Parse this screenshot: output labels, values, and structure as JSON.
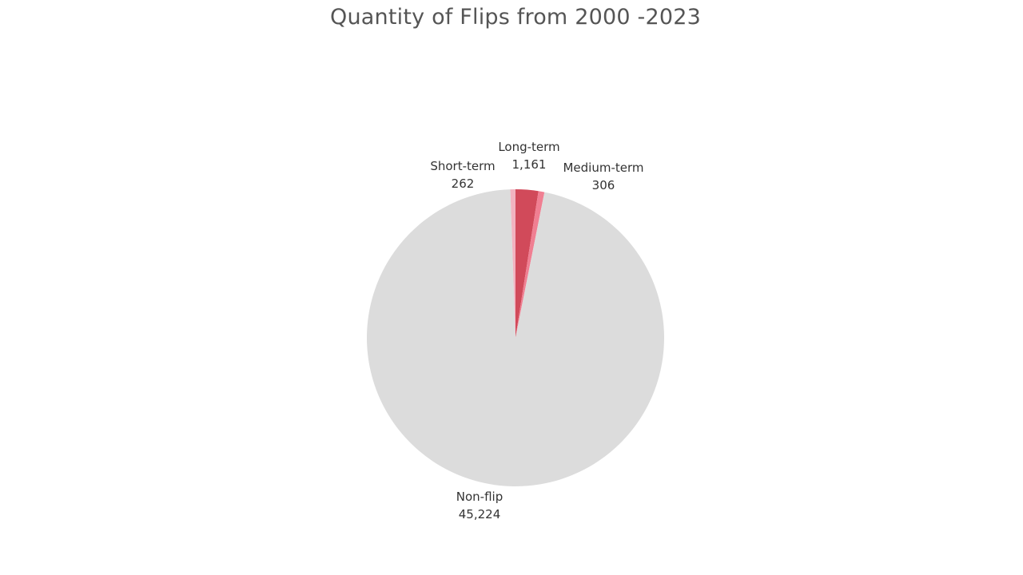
{
  "chart_data": {
    "type": "pie",
    "title": "Quantity of Flips from 2000 -2023",
    "slices": [
      {
        "name": "Long-term",
        "value": 1161,
        "value_label": "1,161",
        "color": "#d14a5a"
      },
      {
        "name": "Medium-term",
        "value": 306,
        "value_label": "306",
        "color": "#f07f92"
      },
      {
        "name": "Non-flip",
        "value": 45224,
        "value_label": "45,224",
        "color": "#dcdcdc"
      },
      {
        "name": "Short-term",
        "value": 262,
        "value_label": "262",
        "color": "#f2b3c0"
      }
    ],
    "start_direction": "top",
    "order": "clockwise"
  }
}
